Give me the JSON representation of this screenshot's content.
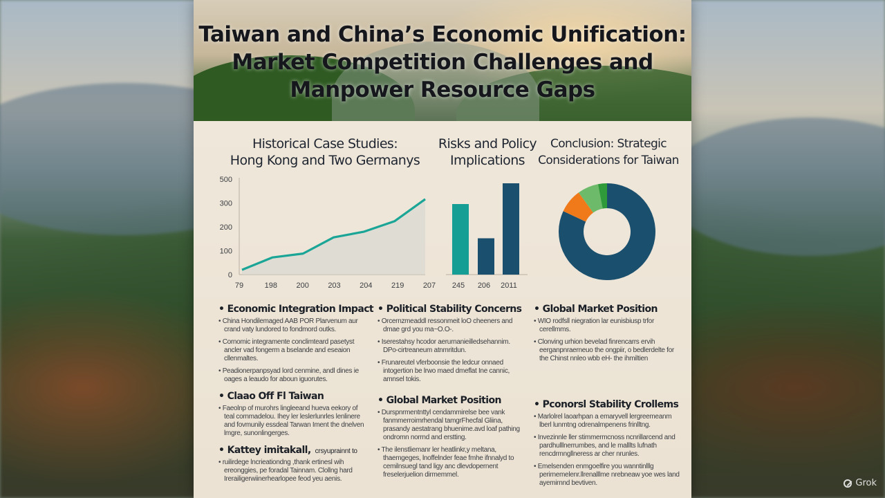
{
  "title_lines": [
    "Taiwan and China’s Economic Unification:",
    "Market Competition Challenges and",
    "Manpower Resource Gaps"
  ],
  "sections": {
    "historical": {
      "lines": [
        "Historical Case Studies:",
        "Hong Kong and Two Germanys"
      ]
    },
    "risks": {
      "lines": [
        "Risks and Policy",
        "Implications"
      ]
    },
    "conclusion": {
      "lines": [
        "Conclusion: Strategic",
        "Considerations for Taiwan"
      ]
    }
  },
  "chart_data": [
    {
      "type": "area",
      "x": [
        "79",
        "198",
        "200",
        "203",
        "204",
        "219",
        "207"
      ],
      "values": [
        25,
        90,
        110,
        195,
        225,
        280,
        395
      ],
      "ylim": [
        0,
        500
      ],
      "yticks": [
        "500",
        "300",
        "200",
        "100",
        "0"
      ],
      "color": "#1aa596"
    },
    {
      "type": "bar",
      "categories": [
        "245",
        "206",
        "2011"
      ],
      "values": [
        68,
        35,
        88
      ],
      "colors": [
        "#159e93",
        "#1a4f6e",
        "#1a4f6e"
      ]
    },
    {
      "type": "pie",
      "values": [
        82,
        8,
        7,
        3
      ],
      "colors": [
        "#1a4f6e",
        "#f07a1a",
        "#6cba6a",
        "#2e9a3a"
      ]
    }
  ],
  "columns": [
    {
      "items": [
        {
          "heading": "Economic Integration Impact",
          "lines": [
            "China Hondilemaged AAB POR Plarvenum aur crand vaty lundored to fondmord outks.",
            "Cornomic integramente conclimteard pasetyst ancler vad fongerm a bselande and eseaion cllenmaltes.",
            "Peadionerpanpsyad lord cenmine, andl dines ie oages a leaudo for aboun iguorutes."
          ]
        },
        {
          "heading": "Claao Off Fl Taiwan",
          "lines": [
            "Faeolnp of murohrs lingleeand hueva eekory of teal cornmadelou. Ihey ler leslerlunrles lenlinere and fovmunily essdeal Tarwan Iment the dnelven lmgre, sunonlingerges."
          ]
        },
        {
          "heading": "Kattey imitakall,",
          "heading_tail": "crsyuprainnt to",
          "lines": [
            "ruilirdege lncrieationdng ,thank ertinesl wih ereonggies, pe foradal Tainnam. Clollng hard Irerailigerwiinerhearlopee feod yeu aenis."
          ]
        }
      ]
    },
    {
      "items": [
        {
          "heading": "Political Stability Concerns",
          "lines": [
            "Orcernzmeaddl ressonmeit loO cheeners and dmae grd you ma~O.O-.",
            "Iserestahsy hcodor aerurnanieilledsehannim. DPo-cirtreaneum atnmritdun.",
            "Frunareutel vferboonsie the ledcur onnaed intogertion be lrwo maed dmeflat Ine cannic, amnsel tokis."
          ]
        },
        {
          "heading": "Global Market Position",
          "lines": [
            "Durspnrmentnttyl cendammirelse bee vank fanmmerroimrhendal tamgrFhecfal Gliina, prasandy aestatrang bhuenime.avd loaf pathing ondromn norrnd and erstting.",
            "The ilenstliemanr ler heatlinkr,y meltana, thaemgeges, lnoffelnder feae fmhe ifnnalyd to cemilnsuegl tand ligy anc dlevdopernent freselerjuelion dirmemmel."
          ]
        }
      ]
    },
    {
      "items": [
        {
          "heading": "Global Market Position",
          "lines": [
            "WIO rodfsll niegration lar eunisbiusp trfor cerellmms.",
            "Clonving urhion bevelad finrencarrs ervih eerganpnraerneuo the ongpiir, o bedlerdelte for the Chinst nnleo wbb eH- the ihmiltien"
          ]
        },
        {
          "heading": "Pconorsl Stability Crollems",
          "lines": [
            "Marlolrel laoarhpan a emaryvell lergreemeanm lberl lunmtng odrenalmpenens frinlltng.",
            "Invezinnle ller stimmermcnoss ncnrillarcend and pardhulllnerrumbes, and le malllts lufnath rencdrmngllneress ar cher nrunles.",
            "Emelsenden enmgoelfire you wanntinlllg perirnemelenr.llrenalllme nrebneaw yoe wes land ayemirnnd bevtiven."
          ]
        }
      ]
    }
  ],
  "watermark": "Grok"
}
